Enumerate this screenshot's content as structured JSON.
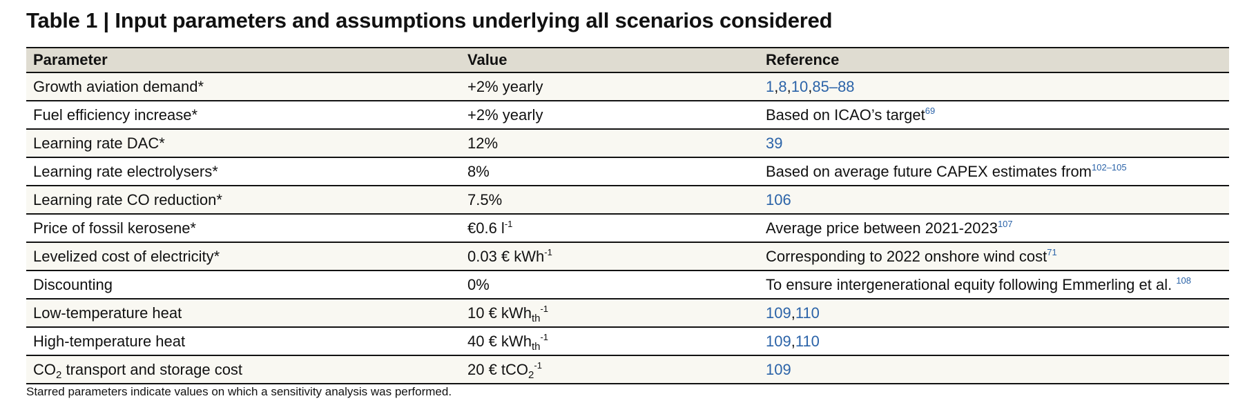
{
  "title": "Table 1 | Input parameters and assumptions underlying all scenarios considered",
  "columns": {
    "parameter": "Parameter",
    "value": "Value",
    "reference": "Reference"
  },
  "rows": [
    {
      "parameter": "Growth aviation demand*",
      "value": "+2% yearly",
      "reference_links": [
        "1",
        "8",
        "10",
        "85–88"
      ]
    },
    {
      "parameter": "Fuel efficiency increase*",
      "value": "+2% yearly",
      "reference_text": "Based on ICAO’s target",
      "reference_sup": "69"
    },
    {
      "parameter": "Learning rate DAC*",
      "value": "12%",
      "reference_links": [
        "39"
      ]
    },
    {
      "parameter": "Learning rate electrolysers*",
      "value": "8%",
      "reference_text": "Based on average future CAPEX estimates from",
      "reference_sup": "102–105"
    },
    {
      "parameter": "Learning rate CO reduction*",
      "value": "7.5%",
      "reference_links": [
        "106"
      ]
    },
    {
      "parameter": "Price of fossil kerosene*",
      "value": "€0.6 l",
      "value_sup": "-1",
      "reference_text": "Average price between 2021-2023",
      "reference_sup": "107"
    },
    {
      "parameter": "Levelized cost of electricity*",
      "value": "0.03 € kWh",
      "value_sup": "-1",
      "reference_text": "Corresponding to 2022 onshore wind cost",
      "reference_sup": "71"
    },
    {
      "parameter": "Discounting",
      "value": "0%",
      "reference_text": "To ensure intergenerational equity following Emmerling et al. ",
      "reference_sup": "108"
    },
    {
      "parameter": "Low-temperature heat",
      "value": "10 € kWh",
      "value_sub": "th",
      "value_sup": "-1",
      "reference_links": [
        "109",
        "110"
      ]
    },
    {
      "parameter": "High-temperature heat",
      "value": "40 € kWh",
      "value_sub": "th",
      "value_sup": "-1",
      "reference_links": [
        "109",
        "110"
      ]
    },
    {
      "parameter": "CO",
      "parameter_sub": "2",
      "parameter_after": " transport and storage cost",
      "value": "20 € tCO",
      "value_sub": "2",
      "value_sup": "-1",
      "reference_links": [
        "109"
      ]
    }
  ],
  "footnote": "Starred parameters indicate values on which a sensitivity analysis was performed.",
  "colors": {
    "header_background": "#dfdcd1",
    "odd_row_background": "#f9f8f2",
    "even_row_background": "#ffffff",
    "rule": "#111111",
    "reference_link": "#2b63a8"
  }
}
